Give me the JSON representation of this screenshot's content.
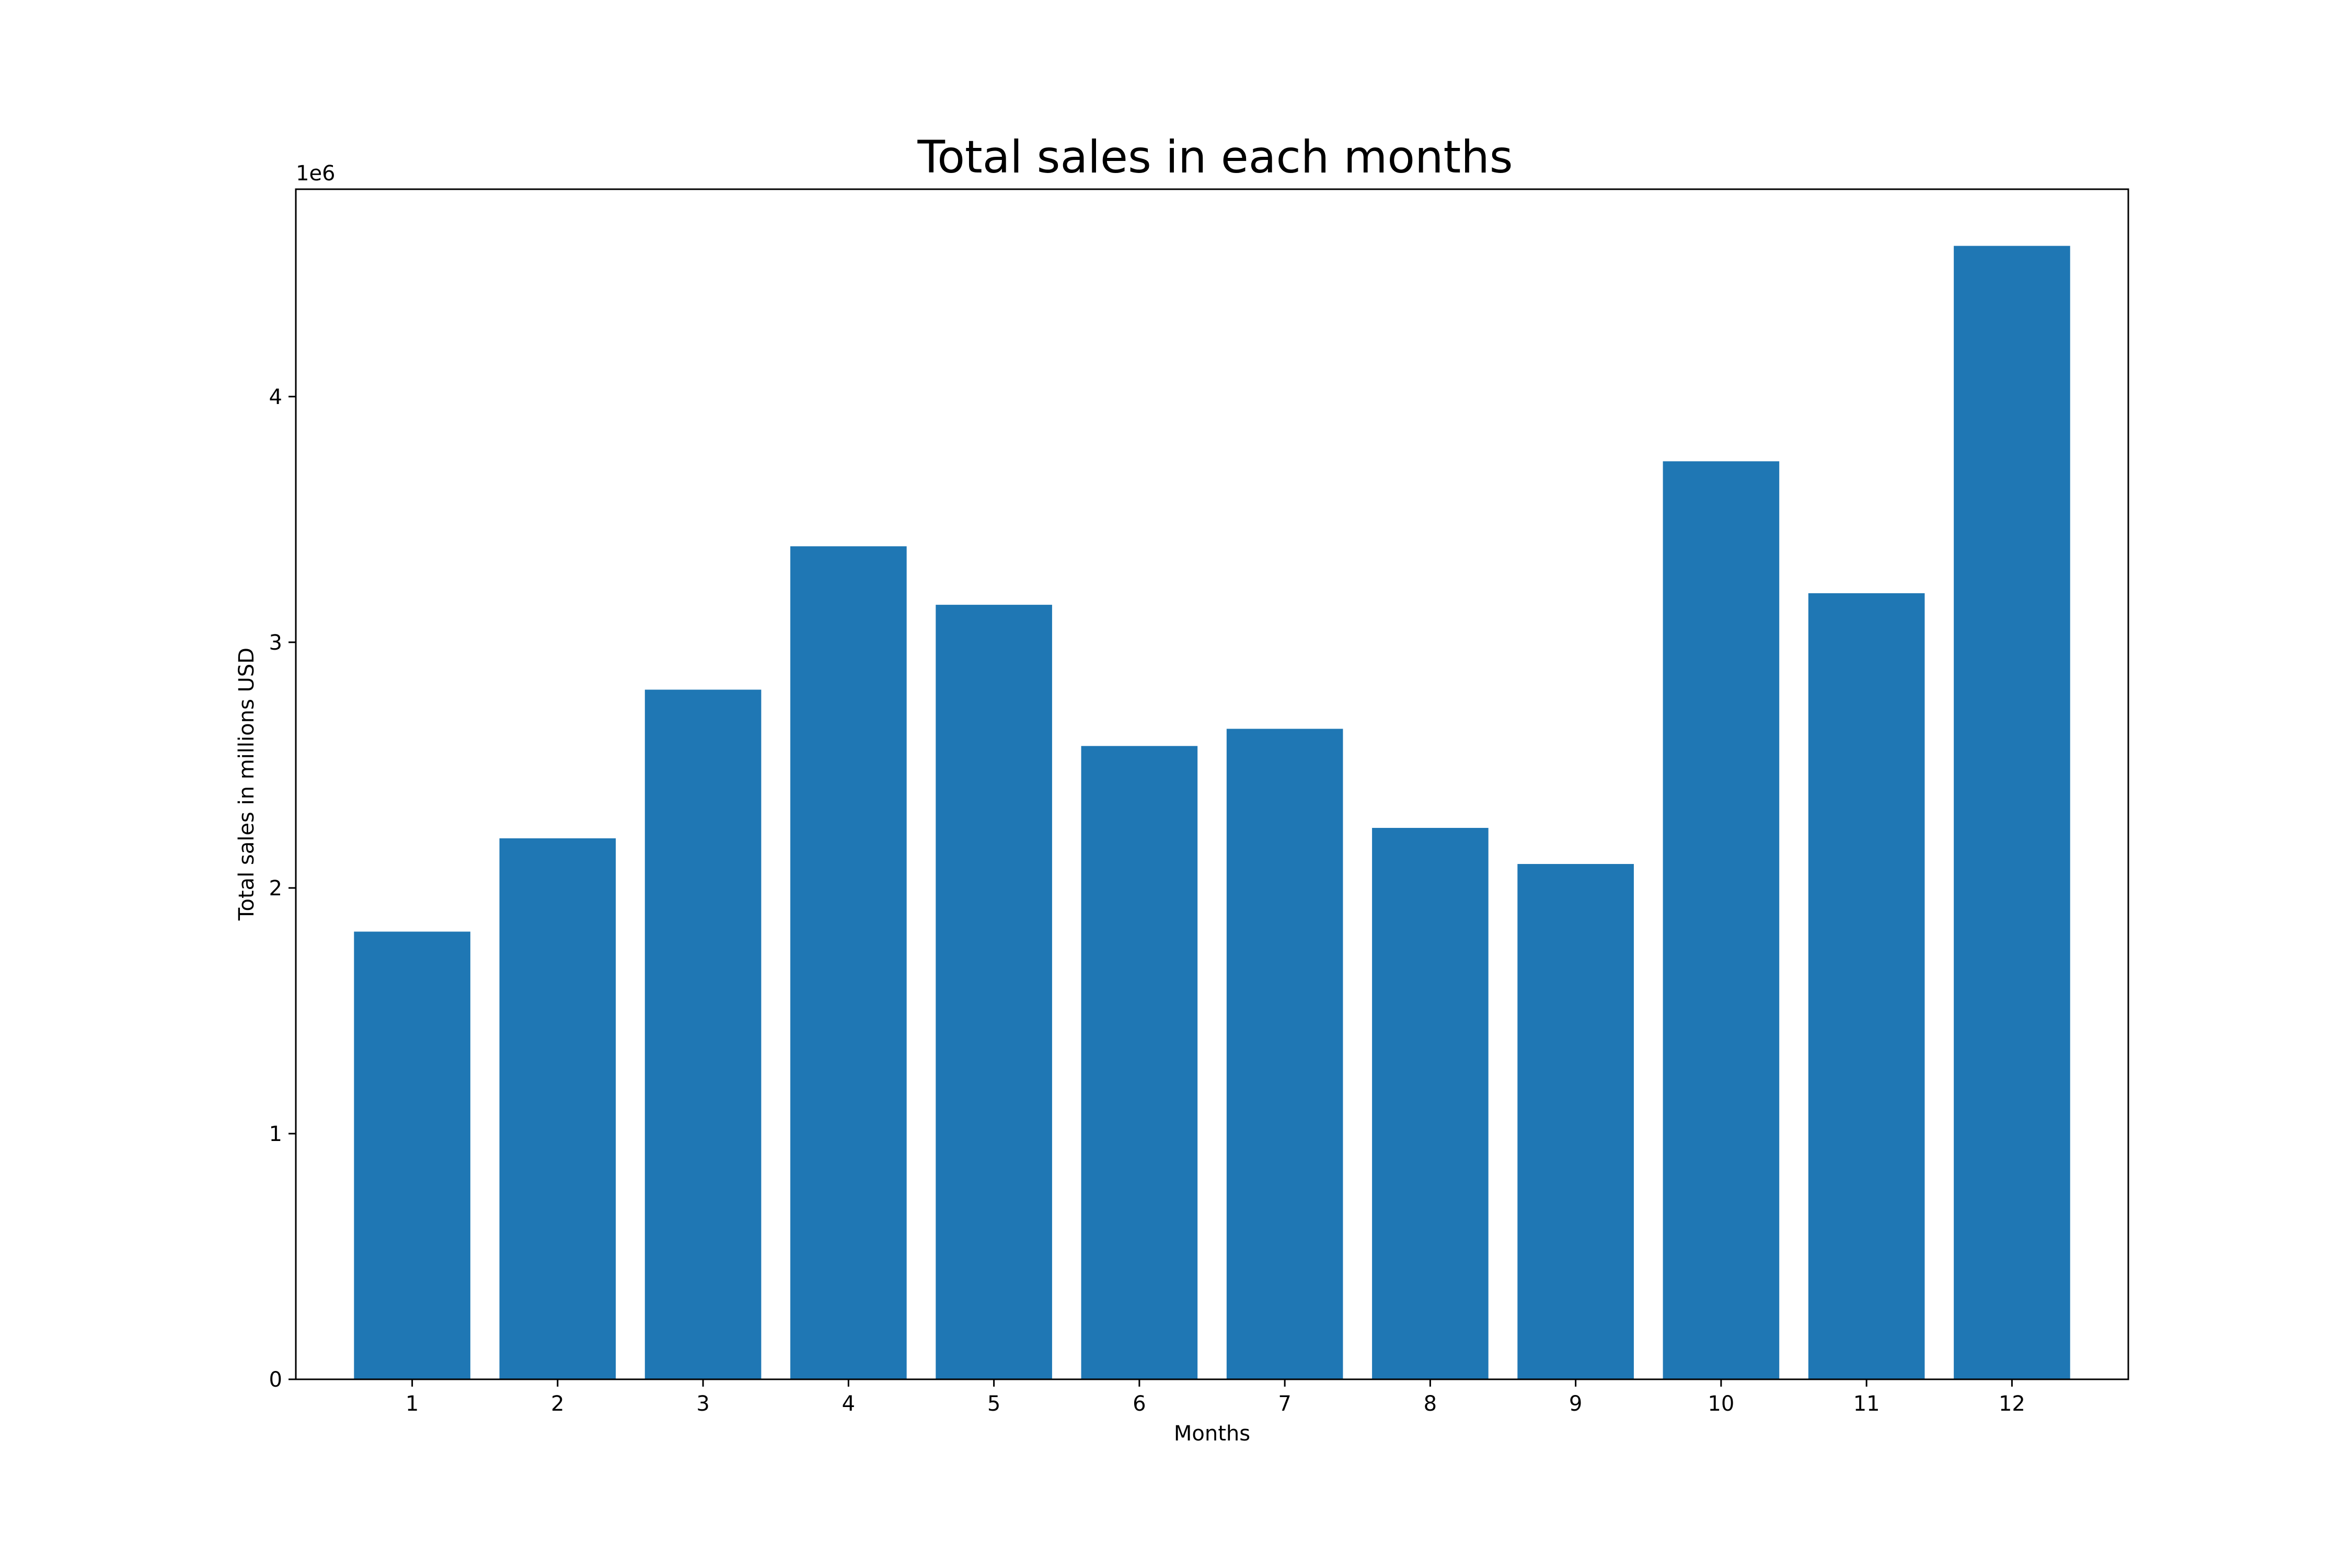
{
  "chart_data": {
    "type": "bar",
    "title": "Total sales in each months",
    "xlabel": "Months",
    "ylabel": "Total sales in millions USD",
    "y_offset_label": "1e6",
    "categories": [
      "1",
      "2",
      "3",
      "4",
      "5",
      "6",
      "7",
      "8",
      "9",
      "10",
      "11",
      "12"
    ],
    "values": [
      1822256.73,
      2202022.42,
      2807100.38,
      3390670.24,
      3152606.75,
      2577802.26,
      2647775.76,
      2244467.88,
      2097560.13,
      3736726.88,
      3199603.2,
      4613443.34
    ],
    "y_ticks": [
      0,
      1,
      2,
      3,
      4
    ],
    "y_tick_scale": 1000000,
    "ylim": [
      0,
      4844115.51
    ],
    "bar_color": "#1f77b4",
    "grid": false,
    "legend": "none"
  }
}
